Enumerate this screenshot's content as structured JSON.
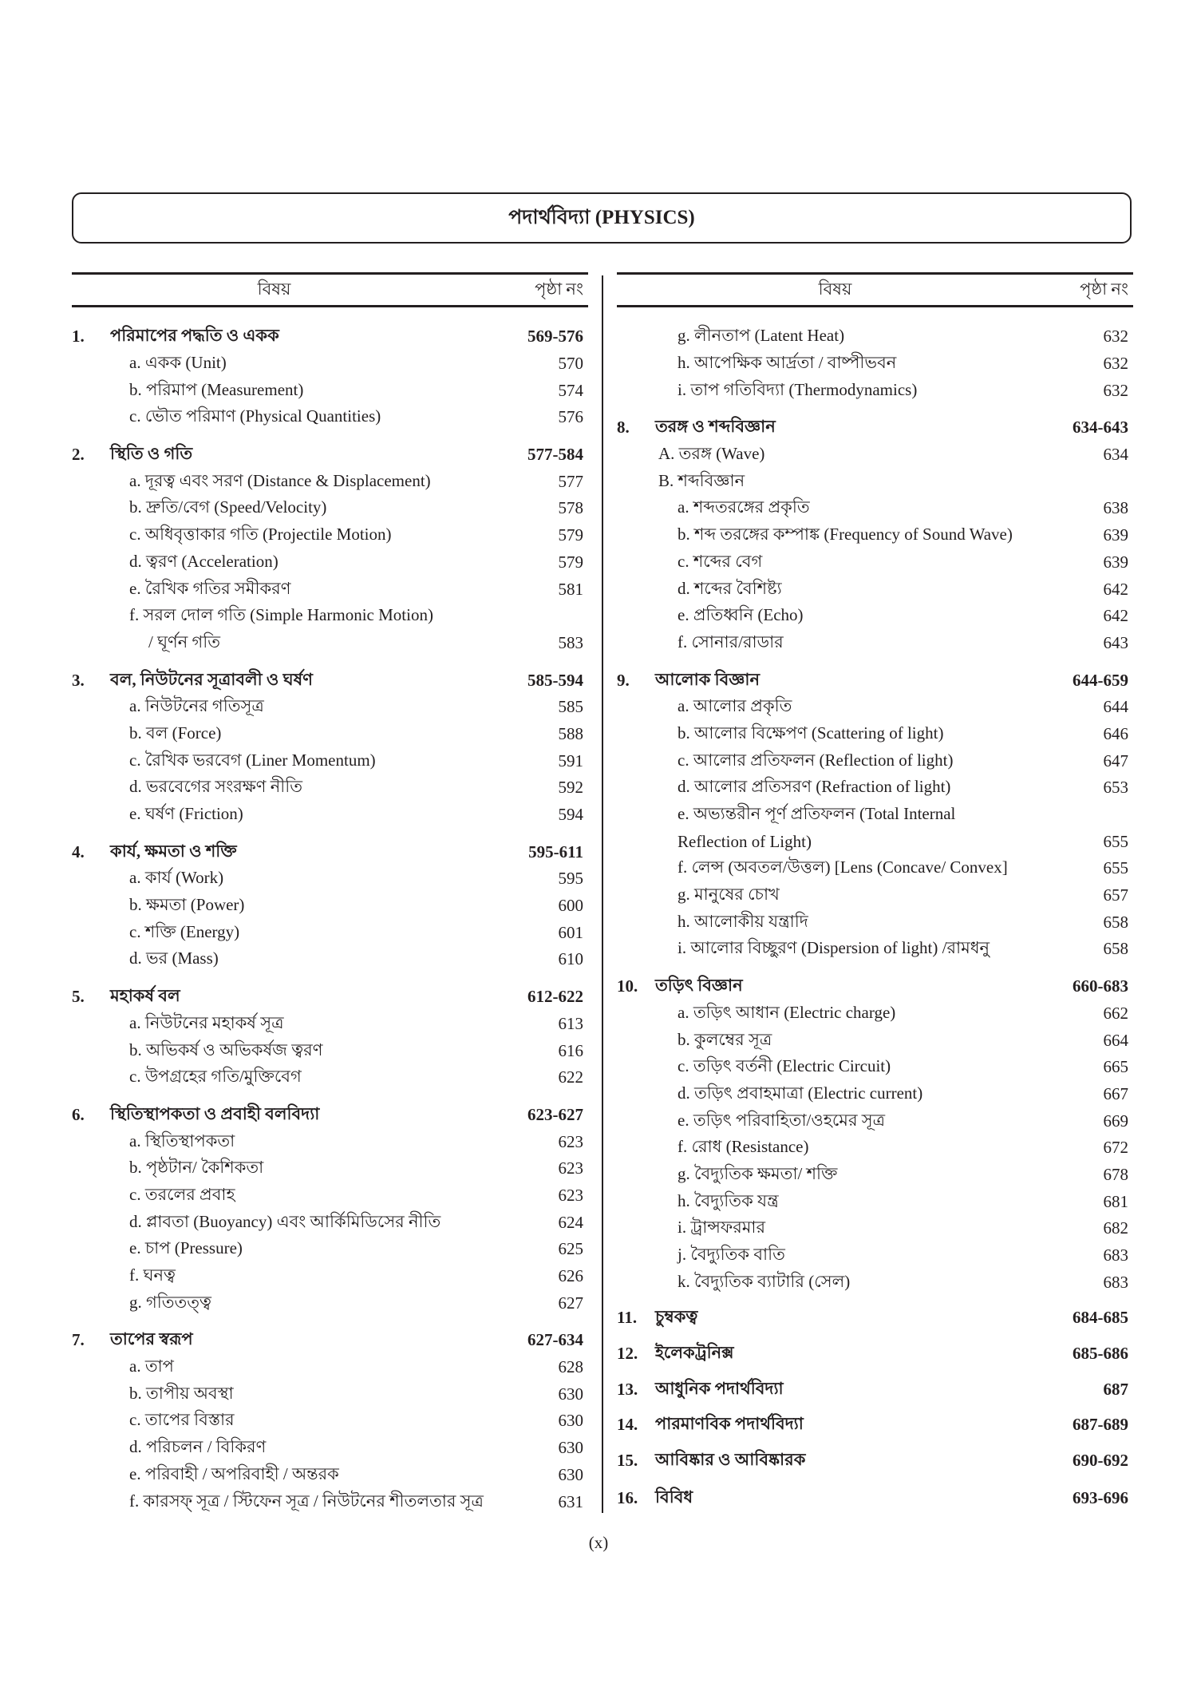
{
  "title": "পদার্থবিদ্যা (PHYSICS)",
  "header": {
    "subject": "বিষয়",
    "page": "পৃষ্ঠা নং"
  },
  "left": [
    {
      "type": "section",
      "num": "1.",
      "text": "পরিমাপের পদ্ধতি ও একক",
      "page": "569-576"
    },
    {
      "type": "item",
      "text": "a. একক (Unit)",
      "page": "570"
    },
    {
      "type": "item",
      "text": "b. পরিমাপ (Measurement)",
      "page": "574"
    },
    {
      "type": "item",
      "text": "c. ভৌত পরিমাণ (Physical Quantities)",
      "page": "576"
    },
    {
      "type": "section",
      "num": "2.",
      "text": "স্থিতি ও গতি",
      "page": "577-584"
    },
    {
      "type": "item",
      "text": "a. দূরত্ব এবং সরণ (Distance & Displacement)",
      "page": "577"
    },
    {
      "type": "item",
      "text": "b. দ্রুতি/বেগ (Speed/Velocity)",
      "page": "578"
    },
    {
      "type": "item",
      "text": "c. অধিবৃত্তাকার গতি (Projectile Motion)",
      "page": "579"
    },
    {
      "type": "item",
      "text": "d. ত্বরণ (Acceleration)",
      "page": "579"
    },
    {
      "type": "item",
      "text": "e. রৈখিক গতির সমীকরণ",
      "page": "581"
    },
    {
      "type": "item",
      "text": "f. সরল দোল গতি (Simple Harmonic Motion)",
      "page": ""
    },
    {
      "type": "cont",
      "text": "/ ঘূর্ণন গতি",
      "page": "583"
    },
    {
      "type": "section",
      "num": "3.",
      "text": "বল, নিউটনের সূত্রাবলী ও ঘর্ষণ",
      "page": "585-594"
    },
    {
      "type": "item",
      "text": "a. নিউটনের গতিসূত্র",
      "page": "585"
    },
    {
      "type": "item",
      "text": "b. বল (Force)",
      "page": "588"
    },
    {
      "type": "item",
      "text": "c. রৈখিক ভরবেগ (Liner Momentum)",
      "page": "591"
    },
    {
      "type": "item",
      "text": "d. ভরবেগের সংরক্ষণ নীতি",
      "page": "592"
    },
    {
      "type": "item",
      "text": "e. ঘর্ষণ (Friction)",
      "page": "594"
    },
    {
      "type": "section",
      "num": "4.",
      "text": "কার্য, ক্ষমতা ও শক্তি",
      "page": "595-611"
    },
    {
      "type": "item",
      "text": "a. কার্য (Work)",
      "page": "595"
    },
    {
      "type": "item",
      "text": "b. ক্ষমতা (Power)",
      "page": "600"
    },
    {
      "type": "item",
      "text": "c. শক্তি (Energy)",
      "page": "601"
    },
    {
      "type": "item",
      "text": "d. ভর (Mass)",
      "page": "610"
    },
    {
      "type": "section",
      "num": "5.",
      "text": "মহাকর্ষ বল",
      "page": "612-622"
    },
    {
      "type": "item",
      "text": "a. নিউটনের মহাকর্ষ সূত্র",
      "page": "613"
    },
    {
      "type": "item",
      "text": "b. অভিকর্ষ ও অভিকর্ষজ ত্বরণ",
      "page": "616"
    },
    {
      "type": "item",
      "text": "c. উপগ্রহের গতি/মুক্তিবেগ",
      "page": "622"
    },
    {
      "type": "section",
      "num": "6.",
      "text": "স্থিতিস্থাপকতা ও প্রবাহী বলবিদ্যা",
      "page": "623-627"
    },
    {
      "type": "item",
      "text": "a. স্থিতিস্থাপকতা",
      "page": "623"
    },
    {
      "type": "item",
      "text": "b. পৃষ্ঠটান/ কৈশিকতা",
      "page": "623"
    },
    {
      "type": "item",
      "text": "c. তরলের প্রবাহ",
      "page": "623"
    },
    {
      "type": "item",
      "text": "d. প্লাবতা (Buoyancy) এবং আর্কিমিডিসের নীতি",
      "page": "624"
    },
    {
      "type": "item",
      "text": "e. চাপ (Pressure)",
      "page": "625"
    },
    {
      "type": "item",
      "text": "f. ঘনত্ব",
      "page": "626"
    },
    {
      "type": "item",
      "text": "g. গতিতত্ত্ব",
      "page": "627"
    },
    {
      "type": "section",
      "num": "7.",
      "text": "তাপের স্বরূপ",
      "page": "627-634"
    },
    {
      "type": "item",
      "text": "a. তাপ",
      "page": "628"
    },
    {
      "type": "item",
      "text": "b. তাপীয় অবস্থা",
      "page": "630"
    },
    {
      "type": "item",
      "text": "c. তাপের বিস্তার",
      "page": "630"
    },
    {
      "type": "item",
      "text": "d. পরিচলন / বিকিরণ",
      "page": "630"
    },
    {
      "type": "item",
      "text": "e. পরিবাহী / অপরিবাহী / অন্তরক",
      "page": "630"
    },
    {
      "type": "item",
      "text": "f. কারসফ্‌ সূত্র / স্টিফেন সূত্র / নিউটনের শীতলতার সূত্র",
      "page": "631"
    }
  ],
  "right": [
    {
      "type": "item",
      "text": "g. লীনতাপ (Latent Heat)",
      "page": "632"
    },
    {
      "type": "item",
      "text": "h. আপেক্ষিক আর্দ্রতা / বাষ্পীভবন",
      "page": "632"
    },
    {
      "type": "item",
      "text": "i. তাপ গতিবিদ্যা (Thermodynamics)",
      "page": "632"
    },
    {
      "type": "section",
      "num": "8.",
      "text": "তরঙ্গ ও শব্দবিজ্ঞান",
      "page": "634-643"
    },
    {
      "type": "sub",
      "text": "A. তরঙ্গ (Wave)",
      "page": "634"
    },
    {
      "type": "sub",
      "text": "B. শব্দবিজ্ঞান",
      "page": ""
    },
    {
      "type": "item",
      "text": "a. শব্দতরঙ্গের প্রকৃতি",
      "page": "638"
    },
    {
      "type": "item",
      "text": "b. শব্দ তরঙ্গের কম্পাঙ্ক (Frequency of Sound Wave)",
      "page": "639"
    },
    {
      "type": "item",
      "text": "c. শব্দের বেগ",
      "page": "639"
    },
    {
      "type": "item",
      "text": "d. শব্দের বৈশিষ্ট্য",
      "page": "642"
    },
    {
      "type": "item",
      "text": "e. প্রতিধ্বনি (Echo)",
      "page": "642"
    },
    {
      "type": "item",
      "text": "f. সোনার/রাডার",
      "page": "643"
    },
    {
      "type": "section",
      "num": "9.",
      "text": "আলোক বিজ্ঞান",
      "page": "644-659"
    },
    {
      "type": "item",
      "text": "a. আলোর প্রকৃতি",
      "page": "644"
    },
    {
      "type": "item",
      "text": "b. আলোর বিক্ষেপণ (Scattering of light)",
      "page": "646"
    },
    {
      "type": "item",
      "text": "c. আলোর প্রতিফলন (Reflection of light)",
      "page": "647"
    },
    {
      "type": "item",
      "text": "d. আলোর প্রতিসরণ (Refraction of light)",
      "page": "653"
    },
    {
      "type": "item",
      "text": "e. অভ্যন্তরীন পূর্ণ প্রতিফলন (Total Internal",
      "page": ""
    },
    {
      "type": "cont",
      "text": "Reflection of Light)",
      "page": "655"
    },
    {
      "type": "item",
      "text": "f. লেন্স (অবতল/উত্তল) [Lens (Concave/ Convex]",
      "page": "655"
    },
    {
      "type": "item",
      "text": "g. মানুষের চোখ",
      "page": "657"
    },
    {
      "type": "item",
      "text": "h. আলোকীয় যন্ত্রাদি",
      "page": "658"
    },
    {
      "type": "item",
      "text": "i. আলোর বিচ্ছুরণ (Dispersion of light) /রামধনু",
      "page": "658"
    },
    {
      "type": "section",
      "num": "10.",
      "text": "তড়িৎ বিজ্ঞান",
      "page": "660-683"
    },
    {
      "type": "item",
      "text": "a. তড়িৎ আধান (Electric charge)",
      "page": "662"
    },
    {
      "type": "item",
      "text": "b. কুলম্বের সূত্র",
      "page": "664"
    },
    {
      "type": "item",
      "text": "c. তড়িৎ বর্তনী (Electric Circuit)",
      "page": "665"
    },
    {
      "type": "item",
      "text": "d. তড়িৎ প্রবাহমাত্রা (Electric current)",
      "page": "667"
    },
    {
      "type": "item",
      "text": "e. তড়িৎ পরিবাহিতা/ওহমের সূত্র",
      "page": "669"
    },
    {
      "type": "item",
      "text": "f. রোধ (Resistance)",
      "page": "672"
    },
    {
      "type": "item",
      "text": "g. বৈদ্যুতিক ক্ষমতা/ শক্তি",
      "page": "678"
    },
    {
      "type": "item",
      "text": "h. বৈদ্যুতিক যন্ত্র",
      "page": "681"
    },
    {
      "type": "item",
      "text": "i. ট্রান্সফরমার",
      "page": "682"
    },
    {
      "type": "item",
      "text": "j. বৈদ্যুতিক বাতি",
      "page": "683"
    },
    {
      "type": "item",
      "text": "k. বৈদ্যুতিক ব্যাটারি (সেল)",
      "page": "683"
    },
    {
      "type": "section big",
      "num": "11.",
      "text": "চুম্বকত্ব",
      "page": "684-685"
    },
    {
      "type": "section big",
      "num": "12.",
      "text": "ইলেকট্রনিক্স",
      "page": "685-686"
    },
    {
      "type": "section big",
      "num": "13.",
      "text": "আধুনিক পদার্থবিদ্যা",
      "page": "687"
    },
    {
      "type": "section big",
      "num": "14.",
      "text": "পারমাণবিক পদার্থবিদ্যা",
      "page": "687-689"
    },
    {
      "type": "section big",
      "num": "15.",
      "text": "আবিষ্কার ও আবিষ্কারক",
      "page": "690-692"
    },
    {
      "type": "section",
      "num": "16.",
      "text": "বিবিধ",
      "page": "693-696"
    }
  ],
  "footer": "(x)"
}
